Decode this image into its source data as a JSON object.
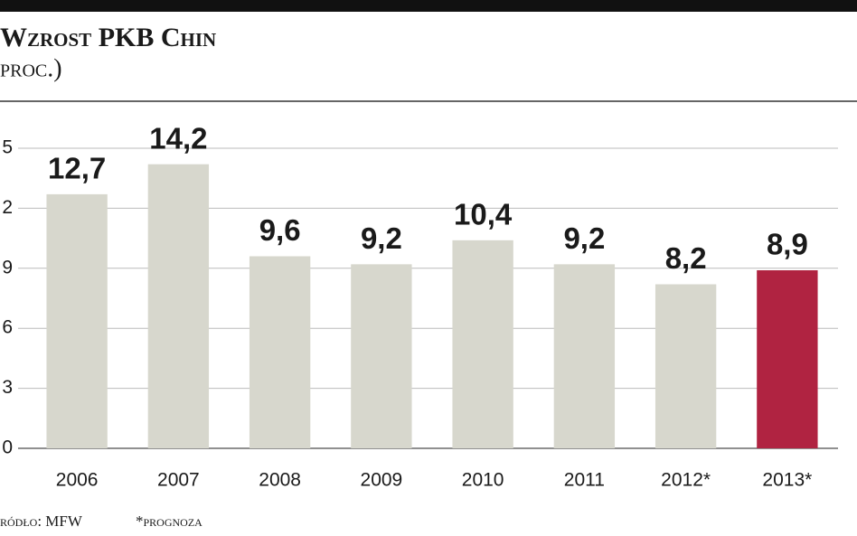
{
  "chart_data": {
    "type": "bar",
    "title": "Wzrost PKB Chin",
    "subtitle": "proc.)",
    "categories": [
      "2006",
      "2007",
      "2008",
      "2009",
      "2010",
      "2011",
      "2012*",
      "2013*"
    ],
    "values": [
      12.7,
      14.2,
      9.6,
      9.2,
      10.4,
      9.2,
      8.2,
      8.9
    ],
    "value_labels": [
      "12,7",
      "14,2",
      "9,6",
      "9,2",
      "10,4",
      "9,2",
      "8,2",
      "8,9"
    ],
    "colors": [
      "#d7d7cd",
      "#d7d7cd",
      "#d7d7cd",
      "#d7d7cd",
      "#d7d7cd",
      "#d7d7cd",
      "#d7d7cd",
      "#b02341"
    ],
    "ylim": [
      0,
      15
    ],
    "yticks": [
      0,
      3,
      6,
      9,
      {
        "value": 12,
        "label": "2"
      },
      {
        "value": 15,
        "label": "5"
      }
    ],
    "grid": true,
    "source": "ródło: MFW",
    "note": "*prognoza"
  }
}
